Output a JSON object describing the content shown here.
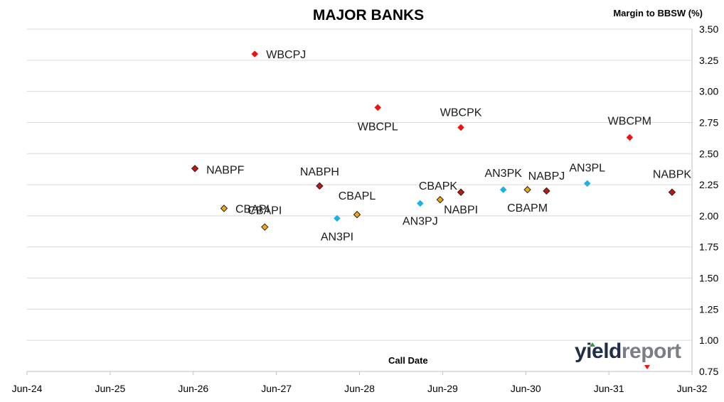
{
  "chart_data": {
    "type": "scatter",
    "title": "MAJOR BANKS",
    "ylabel": "Margin to BBSW (%)",
    "xlabel": "Call Date",
    "ylim": [
      0.75,
      3.5
    ],
    "yticks": [
      "0.75",
      "1.00",
      "1.25",
      "1.50",
      "1.75",
      "2.00",
      "2.25",
      "2.50",
      "2.75",
      "3.00",
      "3.25",
      "3.50"
    ],
    "xticks": [
      "Jun-24",
      "Jun-25",
      "Jun-26",
      "Jun-27",
      "Jun-28",
      "Jun-29",
      "Jun-30",
      "Jun-31",
      "Jun-32"
    ],
    "grid": "horizontal",
    "y_axis_side": "right",
    "colors": {
      "WBC": "#ee1111",
      "NAB": "#cc1111",
      "CBA": "#f2a818",
      "ANZ": "#1ab0ea"
    },
    "points": [
      {
        "label": "WBCPJ",
        "x": 2.74,
        "y": 3.3,
        "group": "WBC"
      },
      {
        "label": "WBCPL",
        "x": 4.22,
        "y": 2.87,
        "group": "WBC"
      },
      {
        "label": "WBCPK",
        "x": 5.22,
        "y": 2.71,
        "group": "WBC"
      },
      {
        "label": "WBCPM",
        "x": 7.25,
        "y": 2.63,
        "group": "WBC"
      },
      {
        "label": "NABPF",
        "x": 2.02,
        "y": 2.38,
        "group": "NAB"
      },
      {
        "label": "NABPH",
        "x": 3.52,
        "y": 2.24,
        "group": "NAB"
      },
      {
        "label": "NABPI",
        "x": 5.22,
        "y": 2.19,
        "group": "NAB"
      },
      {
        "label": "NABPJ",
        "x": 6.25,
        "y": 2.2,
        "group": "NAB"
      },
      {
        "label": "NABPK",
        "x": 7.76,
        "y": 2.19,
        "group": "NAB"
      },
      {
        "label": "CBAPI",
        "x": 2.37,
        "y": 2.06,
        "group": "CBA"
      },
      {
        "label": "CBAPI",
        "x": 2.86,
        "y": 1.91,
        "group": "CBA"
      },
      {
        "label": "CBAPL",
        "x": 3.97,
        "y": 2.01,
        "group": "CBA"
      },
      {
        "label": "CBAPK",
        "x": 4.97,
        "y": 2.13,
        "group": "CBA"
      },
      {
        "label": "CBAPM",
        "x": 6.02,
        "y": 2.21,
        "group": "CBA"
      },
      {
        "label": "AN3PI",
        "x": 3.73,
        "y": 1.98,
        "group": "ANZ"
      },
      {
        "label": "AN3PJ",
        "x": 4.73,
        "y": 2.1,
        "group": "ANZ"
      },
      {
        "label": "AN3PK",
        "x": 5.73,
        "y": 2.21,
        "group": "ANZ"
      },
      {
        "label": "AN3PL",
        "x": 6.74,
        "y": 2.26,
        "group": "ANZ"
      }
    ]
  },
  "logo": {
    "part1": "yield",
    "part2": "report"
  }
}
